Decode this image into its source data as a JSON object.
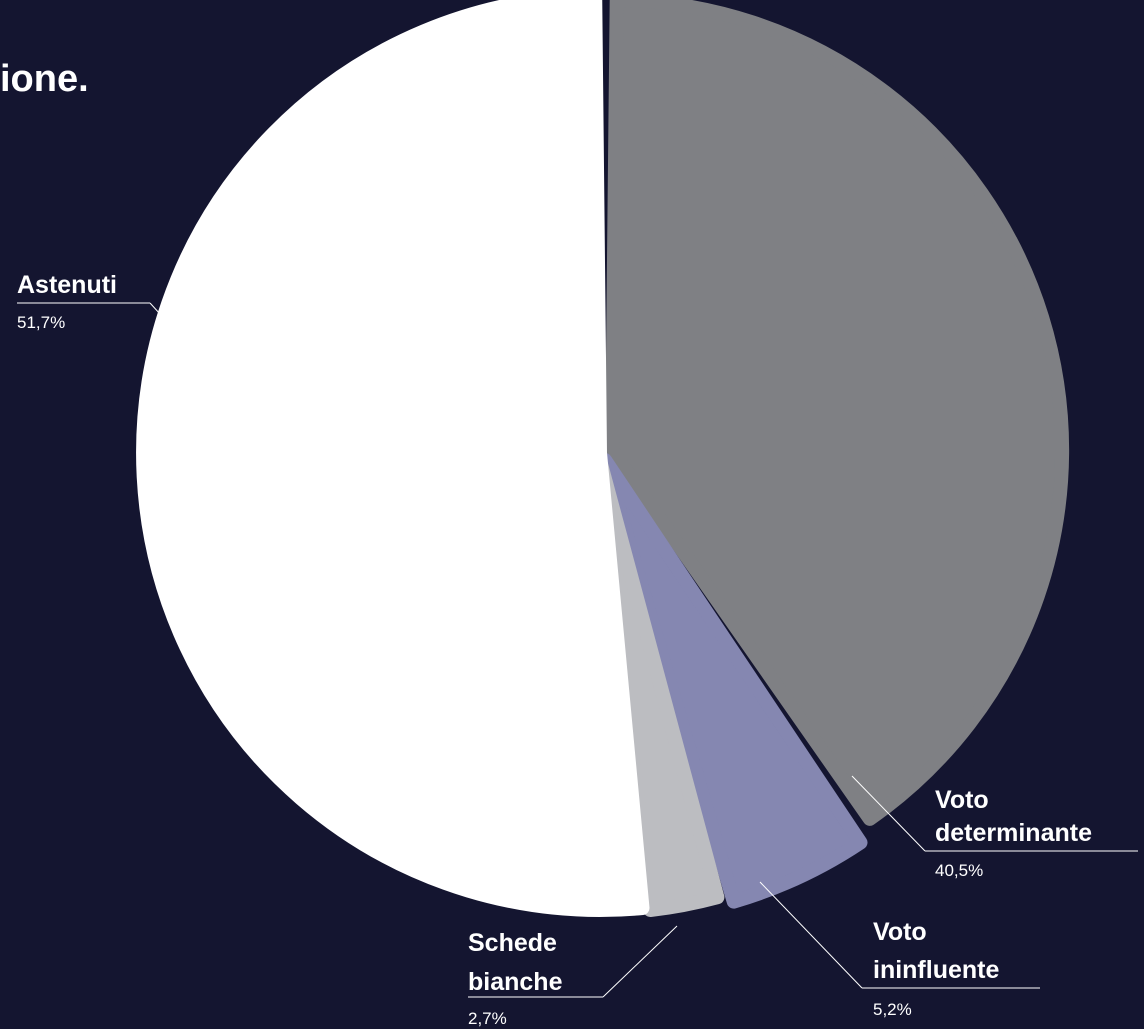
{
  "title_fragment": "ione.",
  "chart_data": {
    "type": "pie",
    "title": "",
    "slices": [
      {
        "label_lines": [
          "Voto",
          "determinante"
        ],
        "value_label": "40,5%",
        "value": 40.5,
        "color": "#7f8084"
      },
      {
        "label_lines": [
          "Voto",
          "ininfluente"
        ],
        "value_label": "5,2%",
        "value": 5.2,
        "color": "#8587b1"
      },
      {
        "label_lines": [
          "Schede",
          "bianche"
        ],
        "value_label": "2,7%",
        "value": 2.7,
        "color": "#bcbdc1"
      },
      {
        "label_lines": [
          "Astenuti"
        ],
        "value_label": "51,7%",
        "value": 51.7,
        "color": "#ffffff"
      }
    ]
  }
}
